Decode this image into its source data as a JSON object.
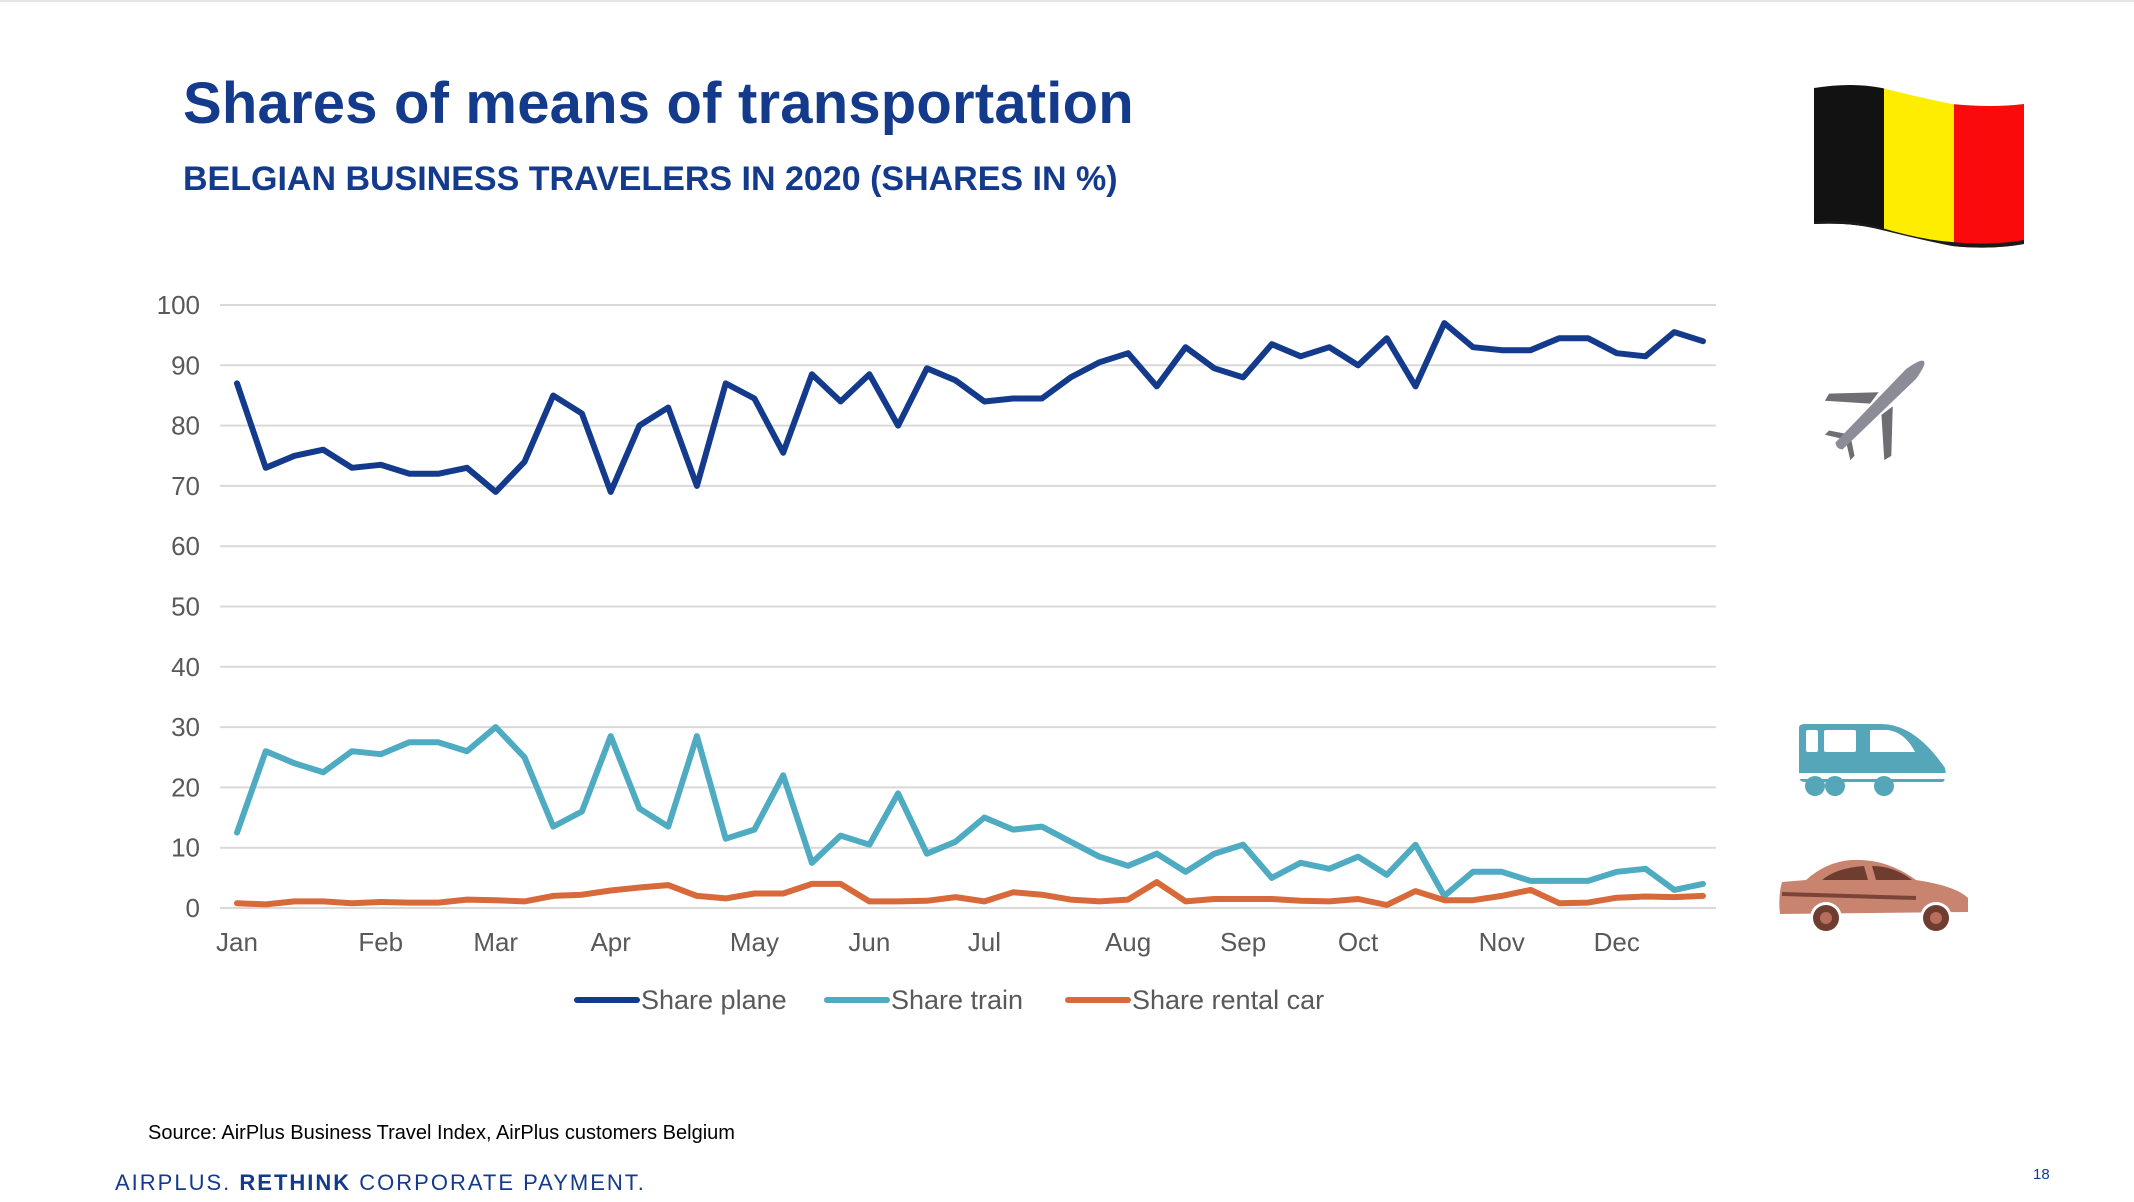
{
  "slide": {
    "title": "Shares of means of transportation",
    "subtitle": "BELGIAN BUSINESS TRAVELERS IN 2020 (SHARES IN %)",
    "source": "Source: AirPlus Business Travel Index, AirPlus customers Belgium",
    "brand_prefix": "AIRPLUS.",
    "brand_bold": "RETHINK",
    "brand_suffix": "CORPORATE PAYMENT.",
    "page_number": "18"
  },
  "icons": {
    "flag": "belgium-flag-icon",
    "plane": "airplane-icon",
    "train": "train-icon",
    "car": "car-icon"
  },
  "colors": {
    "title": "#143a8c",
    "plane": "#143a8c",
    "train": "#4eabc2",
    "car": "#d8693a",
    "grid": "#d9d9d9",
    "tick": "#595959"
  },
  "chart_data": {
    "type": "line",
    "title": "Shares of means of transportation",
    "subtitle": "BELGIAN BUSINESS TRAVELERS IN 2020 (SHARES IN %)",
    "xlabel": "",
    "ylabel": "",
    "ylim": [
      0,
      100
    ],
    "yticks": [
      0,
      10,
      20,
      30,
      40,
      50,
      60,
      70,
      80,
      90,
      100
    ],
    "grid": true,
    "legend_position": "bottom",
    "x_count": 52,
    "x_tick_labels": [
      {
        "index": 0,
        "label": "Jan"
      },
      {
        "index": 5,
        "label": "Feb"
      },
      {
        "index": 9,
        "label": "Mar"
      },
      {
        "index": 13,
        "label": "Apr"
      },
      {
        "index": 18,
        "label": "May"
      },
      {
        "index": 22,
        "label": "Jun"
      },
      {
        "index": 26,
        "label": "Jul"
      },
      {
        "index": 31,
        "label": "Aug"
      },
      {
        "index": 35,
        "label": "Sep"
      },
      {
        "index": 39,
        "label": "Oct"
      },
      {
        "index": 44,
        "label": "Nov"
      },
      {
        "index": 48,
        "label": "Dec"
      }
    ],
    "series": [
      {
        "name": "Share plane",
        "color": "#143a8c",
        "values": [
          87,
          73,
          75,
          76,
          73,
          73.5,
          72,
          72,
          73,
          69,
          74,
          85,
          82,
          69,
          80,
          83,
          70,
          87,
          84.5,
          75.5,
          88.5,
          84,
          88.5,
          80,
          89.5,
          87.5,
          84,
          84.5,
          84.5,
          88,
          90.5,
          92,
          86.5,
          93,
          89.5,
          88,
          93.5,
          91.5,
          93,
          90,
          94.5,
          86.5,
          97,
          93,
          92.5,
          92.5,
          94.5,
          94.5,
          92,
          91.5,
          95.5,
          94
        ]
      },
      {
        "name": "Share train",
        "color": "#4eabc2",
        "values": [
          12.5,
          26,
          24,
          22.5,
          26,
          25.5,
          27.5,
          27.5,
          26,
          30,
          25,
          13.5,
          16,
          28.5,
          16.5,
          13.5,
          28.5,
          11.5,
          13,
          22,
          7.5,
          12,
          10.5,
          19,
          9,
          11,
          15,
          13,
          13.5,
          11,
          8.5,
          7,
          9,
          6,
          9,
          10.5,
          5,
          7.5,
          6.5,
          8.5,
          5.5,
          10.5,
          2,
          6,
          6,
          4.5,
          4.5,
          4.5,
          6,
          6.5,
          3,
          4
        ]
      },
      {
        "name": "Share rental car",
        "color": "#d8693a",
        "values": [
          0.8,
          0.6,
          1.1,
          1.1,
          0.8,
          1.0,
          0.9,
          0.9,
          1.4,
          1.3,
          1.1,
          2.0,
          2.2,
          2.9,
          3.4,
          3.8,
          2.0,
          1.6,
          2.4,
          2.4,
          4.0,
          4.0,
          1.1,
          1.1,
          1.2,
          1.8,
          1.1,
          2.6,
          2.2,
          1.4,
          1.1,
          1.4,
          4.3,
          1.1,
          1.5,
          1.5,
          1.5,
          1.2,
          1.1,
          1.5,
          0.5,
          2.8,
          1.3,
          1.3,
          2.0,
          3.0,
          0.8,
          0.9,
          1.7,
          1.9,
          1.8,
          2.0
        ]
      }
    ]
  }
}
